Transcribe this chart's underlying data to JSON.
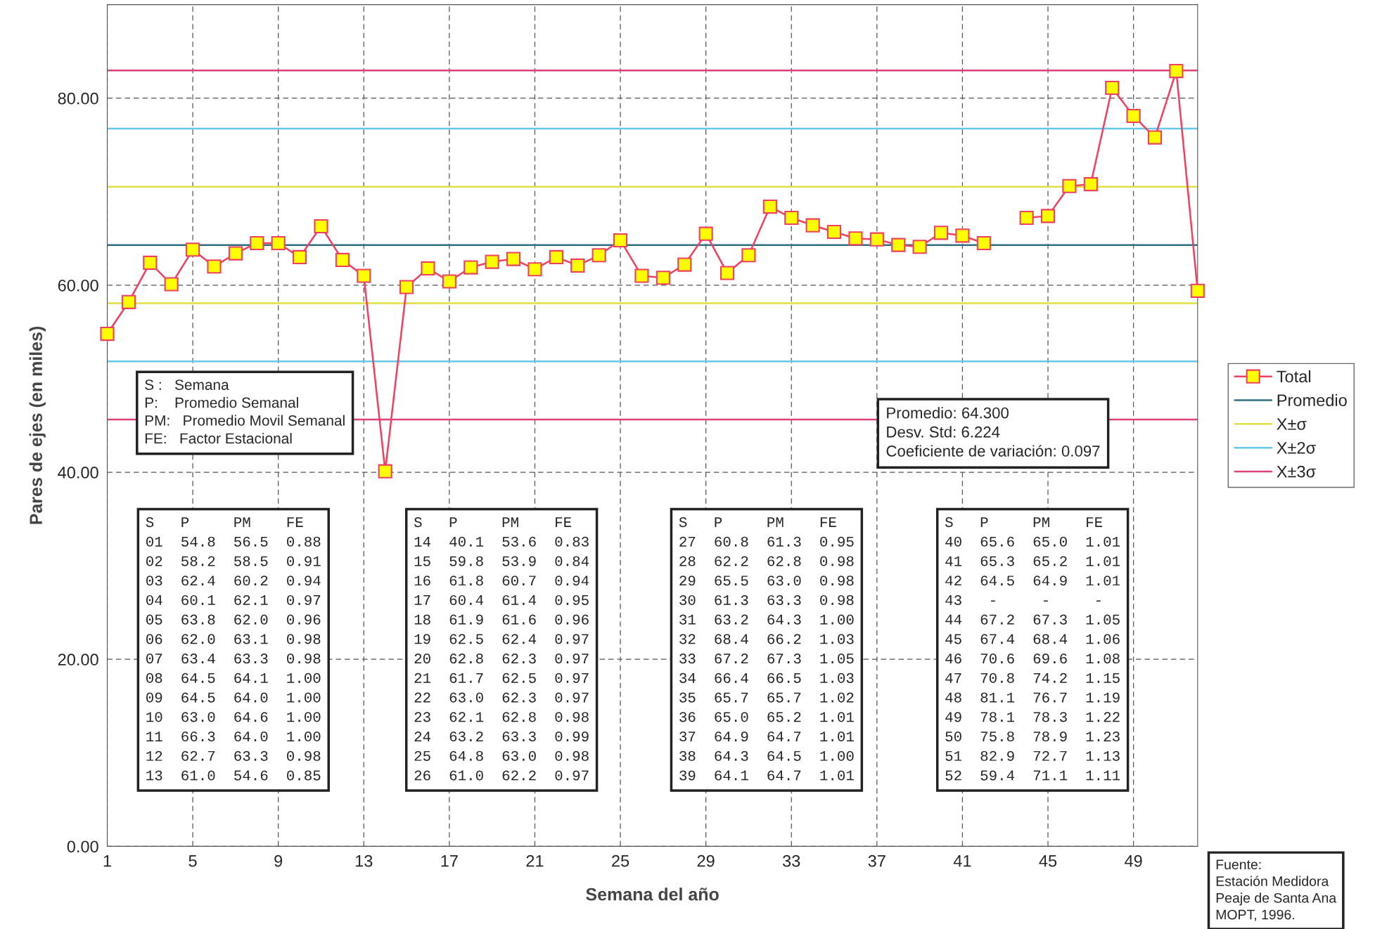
{
  "chart_data": {
    "type": "line",
    "xlabel": "Semana del año",
    "ylabel": "Pares de ejes (en miles)",
    "x": [
      1,
      2,
      3,
      4,
      5,
      6,
      7,
      8,
      9,
      10,
      11,
      12,
      13,
      14,
      15,
      16,
      17,
      18,
      19,
      20,
      21,
      22,
      23,
      24,
      25,
      26,
      27,
      28,
      29,
      30,
      31,
      32,
      33,
      34,
      35,
      36,
      37,
      38,
      39,
      40,
      41,
      42,
      43,
      44,
      45,
      46,
      47,
      48,
      49,
      50,
      51,
      52
    ],
    "series": [
      {
        "name": "Total",
        "color": "#f04060",
        "values": [
          54.8,
          58.2,
          62.4,
          60.1,
          63.8,
          62.0,
          63.4,
          64.5,
          64.5,
          63.0,
          66.3,
          62.7,
          61.0,
          40.1,
          59.8,
          61.8,
          60.4,
          61.9,
          62.5,
          62.8,
          61.7,
          63.0,
          62.1,
          63.2,
          64.8,
          61.0,
          60.8,
          62.2,
          65.5,
          61.3,
          63.2,
          68.4,
          67.2,
          66.4,
          65.7,
          65.0,
          64.9,
          64.3,
          64.1,
          65.6,
          65.3,
          64.5,
          null,
          67.2,
          67.4,
          70.6,
          70.8,
          81.1,
          78.1,
          75.8,
          82.9,
          59.4
        ]
      }
    ],
    "marker": "square",
    "line_style": "solid",
    "xlim": [
      1,
      52
    ],
    "xticks": [
      1,
      5,
      9,
      13,
      17,
      21,
      25,
      29,
      33,
      37,
      41,
      45,
      49
    ],
    "ylim": [
      0,
      90
    ],
    "yticks": [
      {
        "value": 0,
        "label": "0.00"
      },
      {
        "value": 20,
        "label": "20.00"
      },
      {
        "value": 40,
        "label": "40.00"
      },
      {
        "value": 60,
        "label": "60.00"
      },
      {
        "value": 80,
        "label": "80.00"
      }
    ],
    "grid": true,
    "legend": "right",
    "ref_lines": [
      {
        "axis": "y",
        "value": 64.3,
        "label": "Promedio",
        "color": "#2f6f7f"
      },
      {
        "axis": "y",
        "value": 70.524,
        "label": "X±σ",
        "color": "#e0e040"
      },
      {
        "axis": "y",
        "value": 58.076,
        "color": "#e0e040"
      },
      {
        "axis": "y",
        "value": 76.748,
        "label": "X±2σ",
        "color": "#66c8e8"
      },
      {
        "axis": "y",
        "value": 51.852,
        "color": "#66c8e8"
      },
      {
        "axis": "y",
        "value": 82.972,
        "label": "X±3σ",
        "color": "#e0407a"
      },
      {
        "axis": "y",
        "value": 45.628,
        "color": "#e0407a"
      }
    ],
    "annotations": [
      "S :   Semana\nP:    Promedio Semanal\nPM:   Promedio Movil Semanal\nFE:   Factor Estacional",
      "Promedio: 64.300\nDesv. Std: 6.224\nCoeficiente de variación: 0.097",
      "S   P     PM    FE\n01  54.8  56.5  0.88\n02  58.2  58.5  0.91\n03  62.4  60.2  0.94\n04  60.1  62.1  0.97\n05  63.8  62.0  0.96\n06  62.0  63.1  0.98\n07  63.4  63.3  0.98\n08  64.5  64.1  1.00\n09  64.5  64.0  1.00\n10  63.0  64.6  1.00\n11  66.3  64.0  1.00\n12  62.7  63.3  0.98\n13  61.0  54.6  0.85",
      "S   P     PM    FE\n14  40.1  53.6  0.83\n15  59.8  53.9  0.84\n16  61.8  60.7  0.94\n17  60.4  61.4  0.95\n18  61.9  61.6  0.96\n19  62.5  62.4  0.97\n20  62.8  62.3  0.97\n21  61.7  62.5  0.97\n22  63.0  62.3  0.97\n23  62.1  62.8  0.98\n24  63.2  63.3  0.99\n25  64.8  63.0  0.98\n26  61.0  62.2  0.97",
      "S   P     PM    FE\n27  60.8  61.3  0.95\n28  62.2  62.8  0.98\n29  65.5  63.0  0.98\n30  61.3  63.3  0.98\n31  63.2  64.3  1.00\n32  68.4  66.2  1.03\n33  67.2  67.3  1.05\n34  66.4  66.5  1.03\n35  65.7  65.7  1.02\n36  65.0  65.2  1.01\n37  64.9  64.7  1.01\n38  64.3  64.5  1.00\n39  64.1  64.7  1.01",
      "S   P     PM    FE\n40  65.6  65.0  1.01\n41  65.3  65.2  1.01\n42  64.5  64.9  1.01\n43   -     -     -\n44  67.2  67.3  1.05\n45  67.4  68.4  1.06\n46  70.6  69.6  1.08\n47  70.8  74.2  1.15\n48  81.1  76.7  1.19\n49  78.1  78.3  1.22\n50  75.8  78.9  1.23\n51  82.9  72.7  1.13\n52  59.4  71.1  1.11",
      "Fuente:\nEstación Medidora\nPeaje de Santa Ana\nMOPT, 1996."
    ]
  }
}
